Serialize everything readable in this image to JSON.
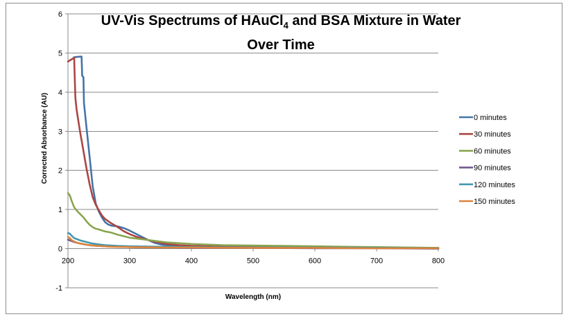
{
  "chart_data": {
    "type": "line",
    "title_line1_main": "UV-Vis Spectrums of HAuCl",
    "title_sub": "4",
    "title_line1_tail": " and BSA Mixture in Water",
    "title_line2": "Over Time",
    "xlabel": "Wavelength (nm)",
    "ylabel": "Corrected Absorbance  (AU)",
    "xlim": [
      200,
      800
    ],
    "ylim": [
      -1,
      6
    ],
    "xticks": [
      200,
      300,
      400,
      500,
      600,
      700,
      800
    ],
    "yticks": [
      -1,
      0,
      1,
      2,
      3,
      4,
      5,
      6
    ],
    "grid": "horizontal major gridlines",
    "legend_position": "right",
    "series": [
      {
        "name": "0 minutes",
        "color": "#4573a7",
        "points": [
          [
            210,
            4.89
          ],
          [
            215,
            4.9
          ],
          [
            222,
            4.91
          ],
          [
            223,
            4.42
          ],
          [
            225,
            4.38
          ],
          [
            226,
            3.72
          ],
          [
            230,
            3.1
          ],
          [
            235,
            2.35
          ],
          [
            240,
            1.6
          ],
          [
            245,
            1.15
          ],
          [
            250,
            0.95
          ],
          [
            255,
            0.8
          ],
          [
            260,
            0.68
          ],
          [
            265,
            0.62
          ],
          [
            270,
            0.59
          ],
          [
            280,
            0.57
          ],
          [
            290,
            0.53
          ],
          [
            300,
            0.46
          ],
          [
            310,
            0.38
          ],
          [
            320,
            0.3
          ],
          [
            330,
            0.22
          ],
          [
            340,
            0.15
          ],
          [
            350,
            0.11
          ],
          [
            370,
            0.07
          ],
          [
            400,
            0.05
          ],
          [
            450,
            0.04
          ],
          [
            500,
            0.03
          ],
          [
            600,
            0.03
          ],
          [
            700,
            0.02
          ],
          [
            800,
            0.02
          ]
        ]
      },
      {
        "name": "30 minutes",
        "color": "#aa4643",
        "points": [
          [
            200,
            4.78
          ],
          [
            205,
            4.83
          ],
          [
            210,
            4.88
          ],
          [
            212,
            3.85
          ],
          [
            214,
            3.55
          ],
          [
            217,
            3.25
          ],
          [
            220,
            2.95
          ],
          [
            225,
            2.5
          ],
          [
            230,
            2.05
          ],
          [
            235,
            1.65
          ],
          [
            240,
            1.32
          ],
          [
            245,
            1.12
          ],
          [
            250,
            0.98
          ],
          [
            255,
            0.85
          ],
          [
            260,
            0.76
          ],
          [
            270,
            0.65
          ],
          [
            280,
            0.56
          ],
          [
            290,
            0.45
          ],
          [
            300,
            0.37
          ],
          [
            310,
            0.31
          ],
          [
            320,
            0.26
          ],
          [
            340,
            0.18
          ],
          [
            360,
            0.12
          ],
          [
            380,
            0.09
          ],
          [
            400,
            0.07
          ],
          [
            450,
            0.05
          ],
          [
            500,
            0.04
          ],
          [
            600,
            0.03
          ],
          [
            700,
            0.02
          ],
          [
            800,
            0.01
          ]
        ]
      },
      {
        "name": "60 minutes",
        "color": "#89a54e",
        "points": [
          [
            200,
            1.42
          ],
          [
            203,
            1.36
          ],
          [
            206,
            1.22
          ],
          [
            210,
            1.06
          ],
          [
            215,
            0.96
          ],
          [
            220,
            0.88
          ],
          [
            225,
            0.8
          ],
          [
            230,
            0.7
          ],
          [
            235,
            0.61
          ],
          [
            240,
            0.55
          ],
          [
            245,
            0.51
          ],
          [
            250,
            0.49
          ],
          [
            260,
            0.44
          ],
          [
            270,
            0.41
          ],
          [
            280,
            0.36
          ],
          [
            290,
            0.32
          ],
          [
            300,
            0.28
          ],
          [
            320,
            0.24
          ],
          [
            340,
            0.2
          ],
          [
            360,
            0.16
          ],
          [
            380,
            0.14
          ],
          [
            400,
            0.12
          ],
          [
            450,
            0.09
          ],
          [
            500,
            0.08
          ],
          [
            550,
            0.07
          ],
          [
            600,
            0.06
          ],
          [
            650,
            0.05
          ],
          [
            700,
            0.04
          ],
          [
            800,
            0.02
          ]
        ]
      },
      {
        "name": "90 minutes",
        "color": "#71588f",
        "points": [
          [
            200,
            0.23
          ],
          [
            205,
            0.2
          ],
          [
            210,
            0.17
          ],
          [
            220,
            0.13
          ],
          [
            230,
            0.1
          ],
          [
            240,
            0.08
          ],
          [
            260,
            0.06
          ],
          [
            300,
            0.04
          ],
          [
            350,
            0.03
          ],
          [
            400,
            0.02
          ],
          [
            500,
            0.02
          ],
          [
            600,
            0.01
          ],
          [
            700,
            0.01
          ],
          [
            800,
            0.0
          ]
        ]
      },
      {
        "name": "120 minutes",
        "color": "#4198af",
        "points": [
          [
            200,
            0.4
          ],
          [
            203,
            0.38
          ],
          [
            206,
            0.33
          ],
          [
            210,
            0.27
          ],
          [
            215,
            0.24
          ],
          [
            220,
            0.21
          ],
          [
            230,
            0.17
          ],
          [
            240,
            0.13
          ],
          [
            250,
            0.11
          ],
          [
            260,
            0.09
          ],
          [
            280,
            0.07
          ],
          [
            300,
            0.06
          ],
          [
            350,
            0.05
          ],
          [
            400,
            0.04
          ],
          [
            500,
            0.03
          ],
          [
            600,
            0.03
          ],
          [
            700,
            0.02
          ],
          [
            800,
            0.01
          ]
        ]
      },
      {
        "name": "150 minutes",
        "color": "#db843d",
        "points": [
          [
            200,
            0.3
          ],
          [
            203,
            0.27
          ],
          [
            206,
            0.22
          ],
          [
            210,
            0.18
          ],
          [
            215,
            0.15
          ],
          [
            220,
            0.13
          ],
          [
            230,
            0.1
          ],
          [
            240,
            0.08
          ],
          [
            250,
            0.07
          ],
          [
            270,
            0.05
          ],
          [
            300,
            0.04
          ],
          [
            350,
            0.03
          ],
          [
            400,
            0.03
          ],
          [
            500,
            0.02
          ],
          [
            600,
            0.02
          ],
          [
            700,
            0.01
          ],
          [
            800,
            0.01
          ]
        ]
      }
    ]
  }
}
